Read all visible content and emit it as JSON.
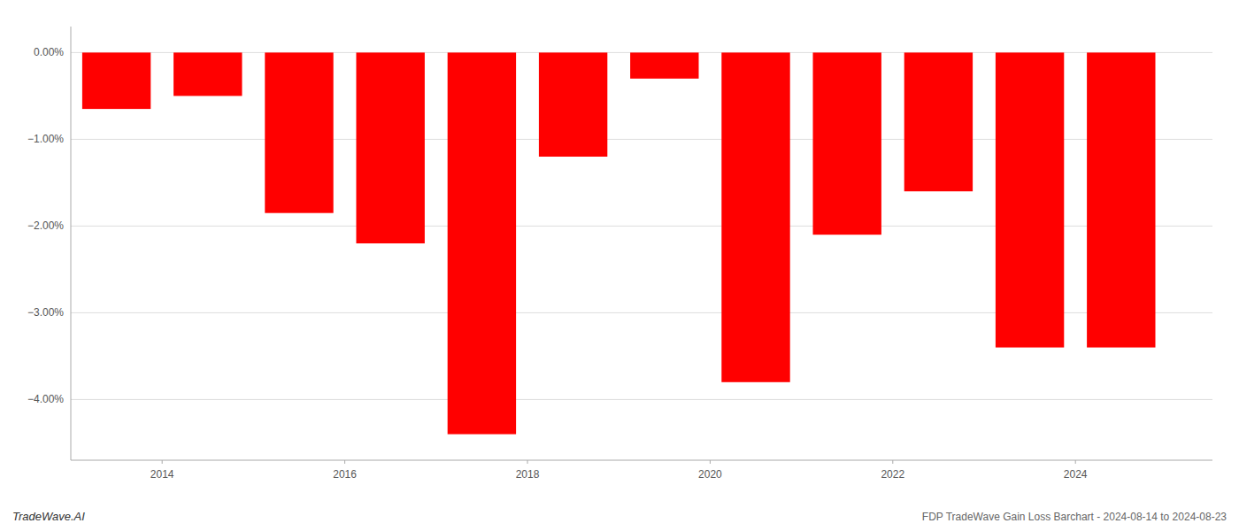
{
  "chart_data": {
    "type": "bar",
    "x": [
      2013.5,
      2014.5,
      2015.5,
      2016.5,
      2017.5,
      2018.5,
      2019.5,
      2020.5,
      2021.5,
      2022.5,
      2023.5,
      2024.5
    ],
    "values": [
      -0.0065,
      -0.005,
      -0.0185,
      -0.022,
      -0.044,
      -0.012,
      -0.003,
      -0.038,
      -0.021,
      -0.016,
      -0.034,
      -0.034
    ],
    "color": "#ff0000",
    "xlim": [
      2013.0,
      2025.5
    ],
    "xticks": [
      2014,
      2016,
      2018,
      2020,
      2022,
      2024
    ],
    "ylim": [
      -0.047,
      0.003
    ],
    "yticks": [
      {
        "value": 0.0,
        "label": "0.00%"
      },
      {
        "value": -0.01,
        "label": "−1.00%"
      },
      {
        "value": -0.02,
        "label": "−2.00%"
      },
      {
        "value": -0.03,
        "label": "−3.00%"
      },
      {
        "value": -0.04,
        "label": "−4.00%"
      }
    ],
    "grid": true,
    "annotations": [
      "TradeWave.AI",
      "FDP TradeWave Gain Loss Barchart - 2024-08-14 to 2024-08-23"
    ]
  }
}
